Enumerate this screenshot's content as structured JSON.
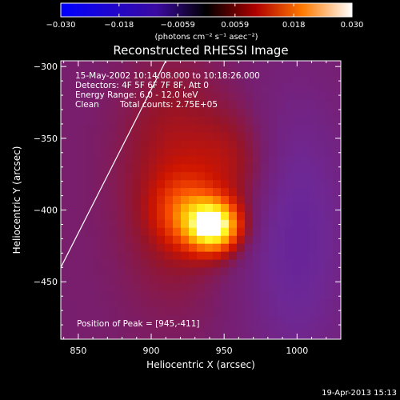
{
  "chart_data": {
    "type": "heatmap",
    "title": "Reconstructed RHESSI Image",
    "xlabel": "Heliocentric X (arcsec)",
    "ylabel": "Heliocentric Y (arcsec)",
    "xlim": [
      838,
      1030
    ],
    "ylim": [
      -490,
      -296
    ],
    "x_ticks": [
      850,
      900,
      950,
      1000
    ],
    "y_ticks": [
      -300,
      -350,
      -400,
      -450
    ],
    "grid": false,
    "colorbar": {
      "ticks": [
        -0.03,
        -0.018,
        -0.0059,
        0.0059,
        0.018,
        0.03
      ],
      "tick_labels": [
        "-0.030",
        "-0.018",
        "-0.0059",
        "0.0059",
        "0.018",
        "0.030"
      ],
      "min": -0.03,
      "max": 0.03,
      "label": "(photons cm⁻² s⁻¹ asec⁻²)"
    },
    "peak": [
      945,
      -411
    ],
    "limb_line": [
      [
        838,
        -440
      ],
      [
        910,
        -296
      ]
    ],
    "sources": [
      {
        "x": 943,
        "y": -411,
        "amp": 0.03,
        "sx": 12,
        "sy": 12
      },
      {
        "x": 923,
        "y": -402,
        "amp": 0.01,
        "sx": 14,
        "sy": 17
      },
      {
        "x": 915,
        "y": -378,
        "amp": 0.006,
        "sx": 24,
        "sy": 55
      },
      {
        "x": 955,
        "y": -368,
        "amp": 0.005,
        "sx": 18,
        "sy": 26
      },
      {
        "x": 1000,
        "y": -420,
        "amp": -0.005,
        "sx": 26,
        "sy": 70
      }
    ]
  },
  "annotations": {
    "time_range": "15-May-2002 10:14:08.000 to 10:18:26.000",
    "detectors": "Detectors: 4F 5F 6F 7F 8F, Att 0",
    "energy": "Energy Range: 6.0 - 12.0 keV",
    "clean": "Clean",
    "total_counts": "Total counts: 2.75E+05",
    "peak_text": "Position of Peak = [945,-411]"
  },
  "footer": {
    "timestamp": "19-Apr-2013 15:13"
  }
}
